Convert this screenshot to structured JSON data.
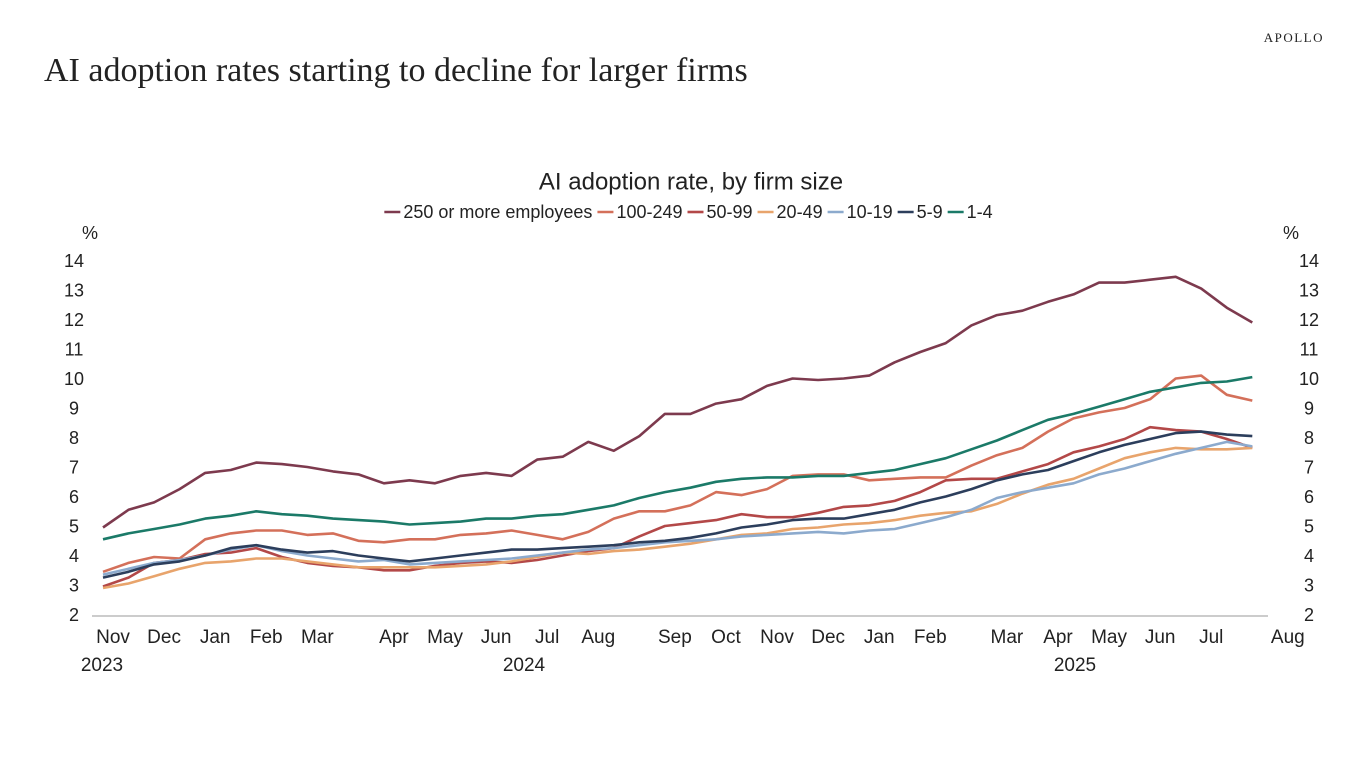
{
  "brand": "APOLLO",
  "headline": "AI adoption rates starting to decline for larger firms",
  "chart_data": {
    "type": "line",
    "title": "AI adoption rate, by firm size",
    "y_unit": "%",
    "y2_unit": "%",
    "categories": [
      "Nov",
      null,
      "Dec",
      null,
      "Jan",
      null,
      "Feb",
      null,
      "Mar",
      null,
      null,
      "Apr",
      null,
      "May",
      null,
      "Jun",
      null,
      "Jul",
      null,
      "Aug",
      null,
      null,
      "Sep",
      null,
      "Oct",
      null,
      "Nov",
      null,
      "Dec",
      null,
      "Jan",
      null,
      "Feb",
      null,
      null,
      "Mar",
      null,
      "Apr",
      null,
      "May",
      null,
      "Jun",
      null,
      "Jul",
      null,
      null,
      "Aug"
    ],
    "x_year_labels": [
      "2023",
      "2024",
      "2025"
    ],
    "ylim": [
      2,
      14
    ],
    "yticks": [
      2,
      3,
      4,
      5,
      6,
      7,
      8,
      9,
      10,
      11,
      12,
      13,
      14
    ],
    "y2lim": [
      2,
      14
    ],
    "y2ticks": [
      2,
      3,
      4,
      5,
      6,
      7,
      8,
      9,
      10,
      11,
      12,
      13,
      14
    ],
    "grid": false,
    "legend": "top",
    "series": [
      {
        "name": "250 or more employees",
        "color": "#7d3a4e",
        "values": [
          5.0,
          5.6,
          5.85,
          6.3,
          6.85,
          6.95,
          7.2,
          7.15,
          7.05,
          6.9,
          6.8,
          6.5,
          6.6,
          6.5,
          6.75,
          6.85,
          6.75,
          7.3,
          7.4,
          7.9,
          7.6,
          8.1,
          8.85,
          8.85,
          9.2,
          9.35,
          9.8,
          10.05,
          10.0,
          10.05,
          10.15,
          10.6,
          10.95,
          11.25,
          11.85,
          12.2,
          12.35,
          12.65,
          12.9,
          13.3,
          13.3,
          13.4,
          13.5,
          13.1,
          12.45,
          11.95,
          null
        ]
      },
      {
        "name": "100-249",
        "color": "#d4705a",
        "values": [
          3.5,
          3.8,
          4.0,
          3.95,
          4.6,
          4.8,
          4.9,
          4.9,
          4.75,
          4.8,
          4.55,
          4.5,
          4.6,
          4.6,
          4.75,
          4.8,
          4.9,
          4.75,
          4.6,
          4.85,
          5.3,
          5.55,
          5.55,
          5.75,
          6.2,
          6.1,
          6.3,
          6.75,
          6.8,
          6.8,
          6.6,
          6.65,
          6.7,
          6.7,
          7.1,
          7.45,
          7.7,
          8.25,
          8.7,
          8.9,
          9.05,
          9.35,
          10.05,
          10.15,
          9.5,
          9.3,
          null
        ]
      },
      {
        "name": "50-99",
        "color": "#b34848",
        "values": [
          3.0,
          3.3,
          3.8,
          3.9,
          4.1,
          4.15,
          4.3,
          4.0,
          3.8,
          3.7,
          3.65,
          3.55,
          3.55,
          3.7,
          3.8,
          3.85,
          3.8,
          3.9,
          4.05,
          4.2,
          4.3,
          4.7,
          5.05,
          5.15,
          5.25,
          5.45,
          5.35,
          5.35,
          5.5,
          5.7,
          5.75,
          5.9,
          6.2,
          6.6,
          6.65,
          6.65,
          6.9,
          7.15,
          7.55,
          7.75,
          8.0,
          8.4,
          8.3,
          8.25,
          8.0,
          7.7,
          null
        ]
      },
      {
        "name": "20-49",
        "color": "#e8a46c",
        "values": [
          2.95,
          3.1,
          3.35,
          3.6,
          3.8,
          3.85,
          3.95,
          3.95,
          3.85,
          3.75,
          3.65,
          3.65,
          3.65,
          3.65,
          3.7,
          3.75,
          3.85,
          4.0,
          4.15,
          4.1,
          4.2,
          4.25,
          4.35,
          4.45,
          4.6,
          4.75,
          4.8,
          4.95,
          5.0,
          5.1,
          5.15,
          5.25,
          5.4,
          5.5,
          5.55,
          5.8,
          6.15,
          6.45,
          6.65,
          7.0,
          7.35,
          7.55,
          7.7,
          7.65,
          7.65,
          7.7,
          null
        ]
      },
      {
        "name": "10-19",
        "color": "#8caacd",
        "values": [
          3.4,
          3.6,
          3.8,
          3.9,
          4.05,
          4.25,
          4.4,
          4.2,
          4.05,
          3.95,
          3.85,
          3.9,
          3.75,
          3.8,
          3.85,
          3.9,
          3.95,
          4.05,
          4.15,
          4.25,
          4.3,
          4.4,
          4.5,
          4.55,
          4.6,
          4.7,
          4.75,
          4.8,
          4.85,
          4.8,
          4.9,
          4.95,
          5.15,
          5.35,
          5.6,
          6.0,
          6.2,
          6.35,
          6.5,
          6.8,
          7.0,
          7.25,
          7.5,
          7.7,
          7.9,
          7.75,
          null
        ]
      },
      {
        "name": "5-9",
        "color": "#2c3e5c",
        "values": [
          3.3,
          3.5,
          3.75,
          3.85,
          4.05,
          4.3,
          4.4,
          4.25,
          4.15,
          4.2,
          4.05,
          3.95,
          3.85,
          3.95,
          4.05,
          4.15,
          4.25,
          4.25,
          4.3,
          4.35,
          4.4,
          4.5,
          4.55,
          4.65,
          4.8,
          5.0,
          5.1,
          5.25,
          5.3,
          5.3,
          5.45,
          5.6,
          5.85,
          6.05,
          6.3,
          6.6,
          6.8,
          6.95,
          7.25,
          7.55,
          7.8,
          8.0,
          8.2,
          8.25,
          8.15,
          8.1,
          null
        ]
      },
      {
        "name": "1-4",
        "color": "#1b7a68",
        "values": [
          4.6,
          4.8,
          4.95,
          5.1,
          5.3,
          5.4,
          5.55,
          5.45,
          5.4,
          5.3,
          5.25,
          5.2,
          5.1,
          5.15,
          5.2,
          5.3,
          5.3,
          5.4,
          5.45,
          5.6,
          5.75,
          6.0,
          6.2,
          6.35,
          6.55,
          6.65,
          6.7,
          6.7,
          6.75,
          6.75,
          6.85,
          6.95,
          7.15,
          7.35,
          7.65,
          7.95,
          8.3,
          8.65,
          8.85,
          9.1,
          9.35,
          9.6,
          9.75,
          9.9,
          9.95,
          10.1,
          null
        ]
      }
    ]
  }
}
